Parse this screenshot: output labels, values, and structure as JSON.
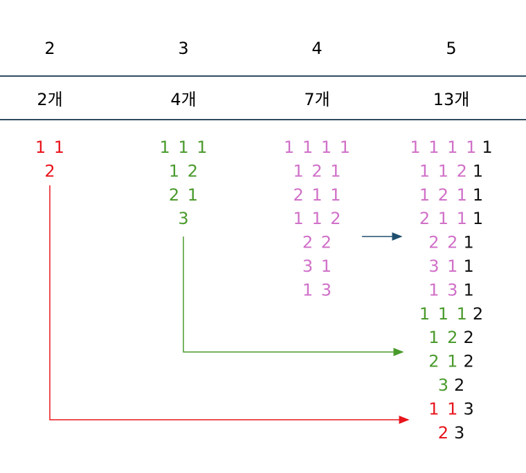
{
  "columns": [
    {
      "n": "2",
      "count": "2개",
      "rows": [
        {
          "prefix": "1 1",
          "color": "#e8141c"
        },
        {
          "prefix": "2",
          "color": "#e8141c"
        }
      ]
    },
    {
      "n": "3",
      "count": "4개",
      "rows": [
        {
          "prefix": "1 1 1",
          "color": "#4a9a2c"
        },
        {
          "prefix": "1 2",
          "color": "#4a9a2c"
        },
        {
          "prefix": "2 1",
          "color": "#4a9a2c"
        },
        {
          "prefix": "3",
          "color": "#4a9a2c"
        }
      ]
    },
    {
      "n": "4",
      "count": "7개",
      "rows": [
        {
          "prefix": "1 1 1 1",
          "color": "#d070c8"
        },
        {
          "prefix": "1 2 1",
          "color": "#d070c8"
        },
        {
          "prefix": "2 1 1",
          "color": "#d070c8"
        },
        {
          "prefix": "1 1 2",
          "color": "#d070c8"
        },
        {
          "prefix": "2 2",
          "color": "#d070c8"
        },
        {
          "prefix": "3 1",
          "color": "#d070c8"
        },
        {
          "prefix": "1 3",
          "color": "#d070c8"
        }
      ]
    },
    {
      "n": "5",
      "count": "13개",
      "rows": [
        {
          "prefix": "1 1 1 1",
          "color": "#d070c8",
          "suffix": "1"
        },
        {
          "prefix": "1 1 2",
          "color": "#d070c8",
          "suffix": "1"
        },
        {
          "prefix": "1 2 1",
          "color": "#d070c8",
          "suffix": "1"
        },
        {
          "prefix": "2 1 1",
          "color": "#d070c8",
          "suffix": "1"
        },
        {
          "prefix": "2 2",
          "color": "#d070c8",
          "suffix": "1"
        },
        {
          "prefix": "3 1",
          "color": "#d070c8",
          "suffix": "1"
        },
        {
          "prefix": "1 3",
          "color": "#d070c8",
          "suffix": "1"
        },
        {
          "prefix": "1 1 1",
          "color": "#4a9a2c",
          "suffix": "2"
        },
        {
          "prefix": "1 2",
          "color": "#4a9a2c",
          "suffix": "2"
        },
        {
          "prefix": "2 1",
          "color": "#4a9a2c",
          "suffix": "2"
        },
        {
          "prefix": "3",
          "color": "#4a9a2c",
          "suffix": "2"
        },
        {
          "prefix": "1 1",
          "color": "#e8141c",
          "suffix": "3"
        },
        {
          "prefix": "2",
          "color": "#e8141c",
          "suffix": "3"
        }
      ]
    }
  ]
}
